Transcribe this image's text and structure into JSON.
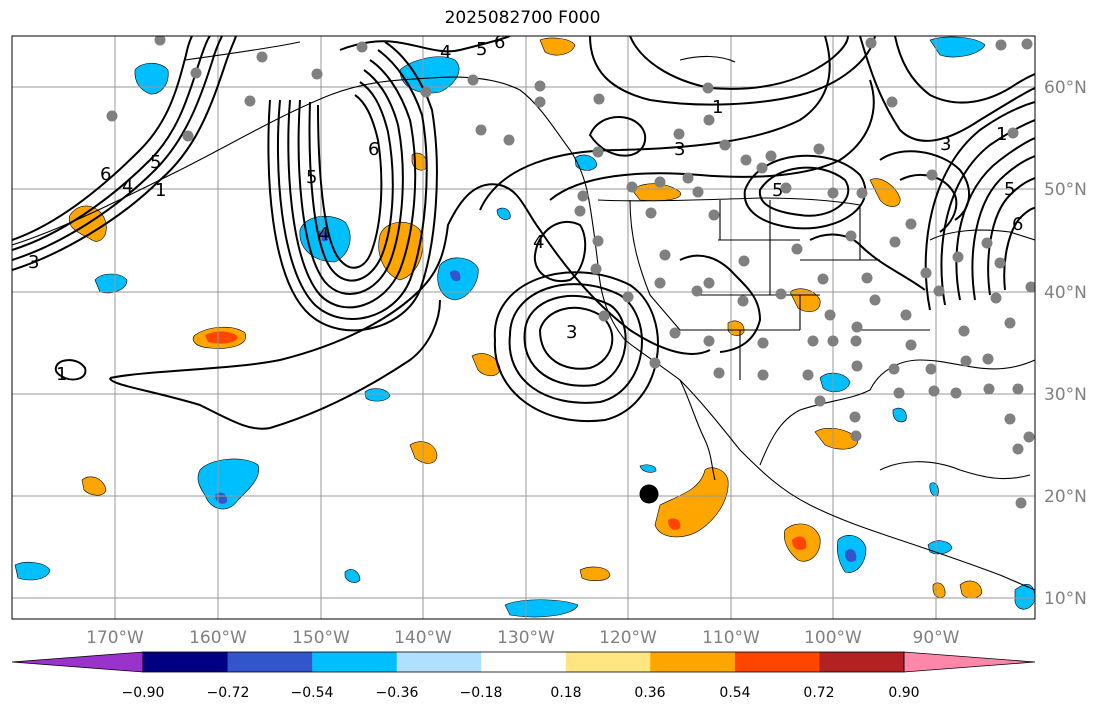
{
  "title": "2025082700 F000",
  "map": {
    "lon_range": [
      -180,
      -80
    ],
    "lat_range": [
      8,
      65
    ],
    "lon_labels": [
      "170°W",
      "160°W",
      "150°W",
      "140°W",
      "130°W",
      "120°W",
      "110°W",
      "100°W",
      "90°W"
    ],
    "lat_labels": [
      "60°N",
      "50°N",
      "40°N",
      "30°N",
      "20°N",
      "10°N"
    ],
    "contour_labels": [
      "6",
      "4",
      "5",
      "1",
      "3",
      "5",
      "6",
      "4",
      "1",
      "5",
      "4",
      "6",
      "3",
      "4",
      "3",
      "1",
      "5",
      "5",
      "1",
      "6",
      "3"
    ]
  },
  "colorbar": {
    "tick_labels": [
      "−0.90",
      "−0.72",
      "−0.54",
      "−0.36",
      "−0.18",
      "0.18",
      "0.36",
      "0.54",
      "0.72",
      "0.90"
    ],
    "colors": [
      "#9933cc",
      "#000080",
      "#3355cc",
      "#00bfff",
      "#b0e0ff",
      "#ffffff",
      "#ffe680",
      "#ffa500",
      "#ff4500",
      "#b22222",
      "#ff88aa"
    ]
  },
  "colors": {
    "positive_fill": "#ffa500",
    "negative_fill": "#00bfff",
    "grid": "#999999",
    "station": "#808080"
  },
  "markers": {
    "storm_center": "black-dot"
  }
}
